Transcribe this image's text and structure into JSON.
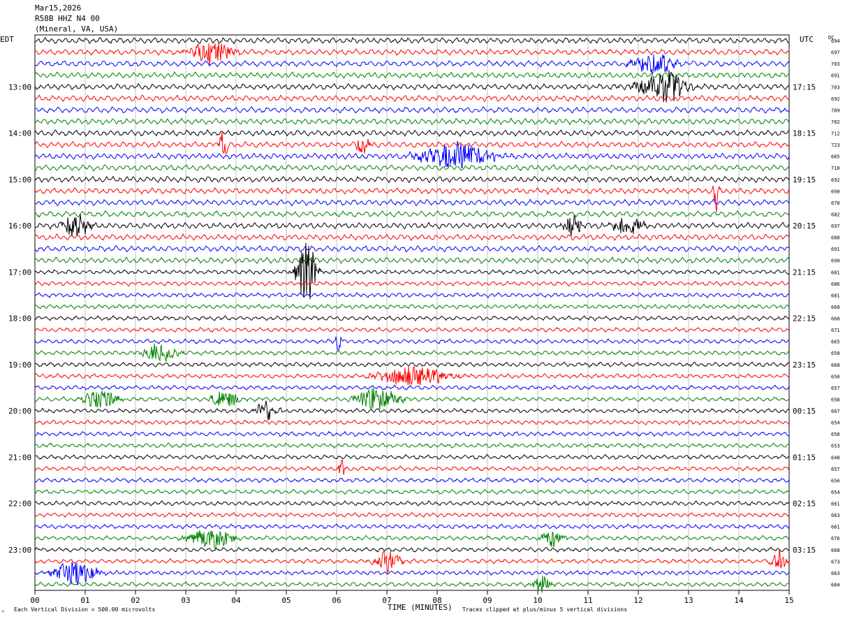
{
  "header": {
    "date": "Mar15,2026",
    "station": "R58B HHZ N4 00",
    "location": "(Mineral, VA, USA)"
  },
  "chart_data": {
    "type": "helicorder",
    "left_axis_label": "EDT",
    "right_axis_label": "UTC",
    "dc_label": "DC",
    "xlabel": "TIME (MINUTES)",
    "xlim": [
      0,
      15
    ],
    "x_ticks": [
      "00",
      "01",
      "02",
      "03",
      "04",
      "05",
      "06",
      "07",
      "08",
      "09",
      "10",
      "11",
      "12",
      "13",
      "14",
      "15"
    ],
    "left_hour_labels": [
      {
        "row": 4,
        "label": "13:00"
      },
      {
        "row": 8,
        "label": "14:00"
      },
      {
        "row": 12,
        "label": "15:00"
      },
      {
        "row": 16,
        "label": "16:00"
      },
      {
        "row": 20,
        "label": "17:00"
      },
      {
        "row": 24,
        "label": "18:00"
      },
      {
        "row": 28,
        "label": "19:00"
      },
      {
        "row": 32,
        "label": "20:00"
      },
      {
        "row": 36,
        "label": "21:00"
      },
      {
        "row": 40,
        "label": "22:00"
      },
      {
        "row": 44,
        "label": "23:00"
      }
    ],
    "right_hour_labels": [
      {
        "row": 4,
        "label": "17:15"
      },
      {
        "row": 8,
        "label": "18:15"
      },
      {
        "row": 12,
        "label": "19:15"
      },
      {
        "row": 16,
        "label": "20:15"
      },
      {
        "row": 20,
        "label": "21:15"
      },
      {
        "row": 24,
        "label": "22:15"
      },
      {
        "row": 28,
        "label": "23:15"
      },
      {
        "row": 32,
        "label": "00:15"
      },
      {
        "row": 36,
        "label": "01:15"
      },
      {
        "row": 40,
        "label": "02:15"
      },
      {
        "row": 44,
        "label": "03:15"
      }
    ],
    "dc_offsets": [
      694,
      697,
      703,
      691,
      703,
      692,
      709,
      702,
      712,
      723,
      685,
      710,
      692,
      690,
      670,
      682,
      697,
      688,
      691,
      690,
      681,
      686,
      681,
      668,
      668,
      671,
      665,
      650,
      668,
      650,
      657,
      658,
      667,
      654,
      658,
      653,
      648,
      657,
      656,
      654,
      661,
      663,
      661,
      676,
      668,
      673,
      663,
      684
    ],
    "trace_colors": [
      "#000000",
      "#ff0000",
      "#0000ff",
      "#008000"
    ],
    "bursts": [
      {
        "row": 1,
        "t": 3.5,
        "w": 0.6,
        "amp": 2.0
      },
      {
        "row": 2,
        "t": 12.3,
        "w": 0.6,
        "amp": 2.0
      },
      {
        "row": 4,
        "t": 12.5,
        "w": 0.7,
        "amp": 2.6
      },
      {
        "row": 9,
        "t": 3.75,
        "w": 0.12,
        "amp": 3.0
      },
      {
        "row": 9,
        "t": 6.5,
        "w": 0.2,
        "amp": 1.6
      },
      {
        "row": 10,
        "t": 8.4,
        "w": 1.0,
        "amp": 2.2
      },
      {
        "row": 13,
        "t": 13.55,
        "w": 0.08,
        "amp": 3.2
      },
      {
        "row": 16,
        "t": 0.8,
        "w": 0.4,
        "amp": 1.8
      },
      {
        "row": 16,
        "t": 10.7,
        "w": 0.25,
        "amp": 1.7
      },
      {
        "row": 16,
        "t": 11.8,
        "w": 0.5,
        "amp": 1.4
      },
      {
        "row": 20,
        "t": 5.4,
        "w": 0.3,
        "amp": 5.0
      },
      {
        "row": 26,
        "t": 6.05,
        "w": 0.1,
        "amp": 2.2
      },
      {
        "row": 27,
        "t": 2.5,
        "w": 0.5,
        "amp": 1.6
      },
      {
        "row": 29,
        "t": 7.5,
        "w": 1.0,
        "amp": 1.6
      },
      {
        "row": 31,
        "t": 1.3,
        "w": 0.5,
        "amp": 1.5
      },
      {
        "row": 31,
        "t": 3.8,
        "w": 0.4,
        "amp": 1.4
      },
      {
        "row": 31,
        "t": 6.8,
        "w": 0.6,
        "amp": 2.0
      },
      {
        "row": 32,
        "t": 4.6,
        "w": 0.3,
        "amp": 1.6
      },
      {
        "row": 37,
        "t": 6.1,
        "w": 0.1,
        "amp": 1.6
      },
      {
        "row": 43,
        "t": 3.5,
        "w": 0.6,
        "amp": 1.8
      },
      {
        "row": 43,
        "t": 10.3,
        "w": 0.3,
        "amp": 1.5
      },
      {
        "row": 45,
        "t": 7.0,
        "w": 0.4,
        "amp": 1.6
      },
      {
        "row": 45,
        "t": 14.8,
        "w": 0.25,
        "amp": 1.8
      },
      {
        "row": 46,
        "t": 0.8,
        "w": 0.6,
        "amp": 2.0
      },
      {
        "row": 47,
        "t": 10.1,
        "w": 0.3,
        "amp": 1.5
      }
    ]
  },
  "footer": {
    "division_note": "Each Vertical Division =  500.00 microvolts",
    "clip_note": "Traces clipped at plus/minus 5 vertical divisions",
    "corner_mark": "\""
  }
}
